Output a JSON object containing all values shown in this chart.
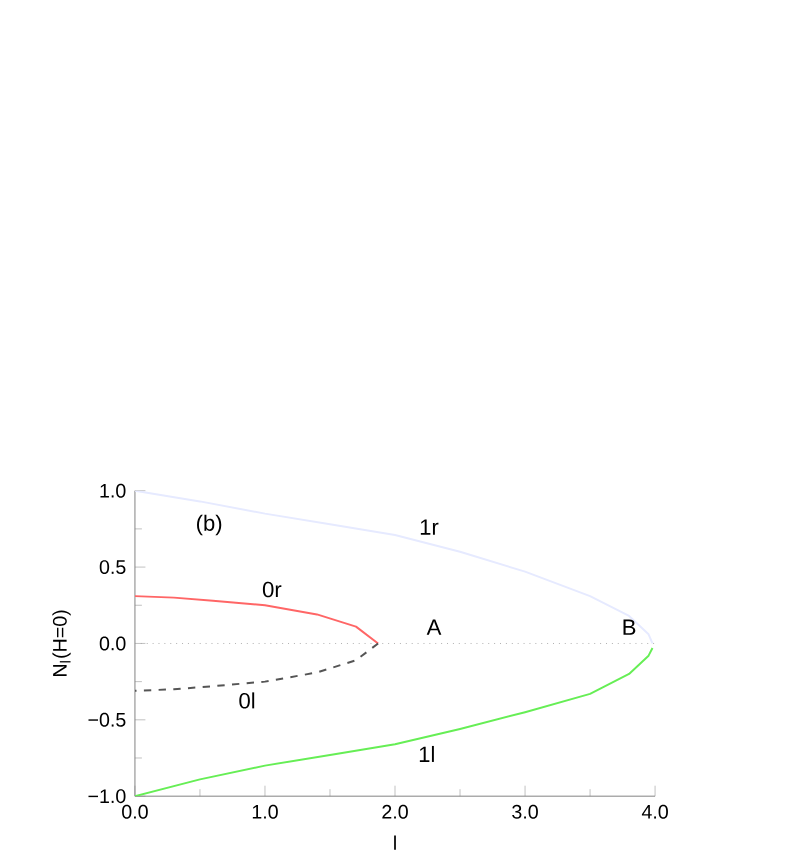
{
  "chart_data": {
    "type": "line",
    "xlabel": "l",
    "ylabel": "N$_{l}$(H=0)",
    "xlim": [
      0,
      4
    ],
    "ylim": [
      -1,
      1
    ],
    "xticks": [
      {
        "value": 0,
        "label": "0.0"
      },
      {
        "value": 1,
        "label": "1.0"
      },
      {
        "value": 2,
        "label": "2.0"
      },
      {
        "value": 3,
        "label": "3.0"
      },
      {
        "value": 4,
        "label": "4.0"
      }
    ],
    "yticks": [
      {
        "value": -1,
        "label": "−1.0"
      },
      {
        "value": -0.5,
        "label": "−0.5"
      },
      {
        "value": 0,
        "label": "0.0"
      },
      {
        "value": 0.5,
        "label": "0.5"
      },
      {
        "value": 1,
        "label": "1.0"
      }
    ],
    "grid": false,
    "marker": "none",
    "series": [
      {
        "name": "0r",
        "color": "#ff6666",
        "line_style": "solid",
        "x": [
          0,
          0.3,
          0.6,
          1.0,
          1.4,
          1.7,
          1.87
        ],
        "values": [
          0.31,
          0.3,
          0.28,
          0.25,
          0.19,
          0.11,
          0
        ]
      },
      {
        "name": "0l",
        "color": "#555555",
        "line_style": "dashed",
        "x": [
          1.87,
          1.7,
          1.4,
          1.0,
          0.6,
          0.3,
          0
        ],
        "values": [
          0,
          -0.11,
          -0.19,
          -0.25,
          -0.28,
          -0.3,
          -0.31
        ]
      },
      {
        "name": "1r",
        "color": "#e6eaff",
        "line_style": "solid",
        "x": [
          0,
          0.5,
          1.0,
          1.5,
          2.0,
          2.5,
          3.0,
          3.5,
          3.8,
          3.95,
          3.98
        ],
        "values": [
          1.0,
          0.93,
          0.85,
          0.78,
          0.71,
          0.6,
          0.47,
          0.31,
          0.18,
          0.06,
          0.0
        ]
      },
      {
        "name": "1l",
        "color": "#66ee55",
        "line_style": "solid",
        "x": [
          0,
          0.5,
          1.0,
          1.5,
          2.0,
          2.5,
          3.0,
          3.5,
          3.8,
          3.95,
          3.98
        ],
        "values": [
          -1.0,
          -0.89,
          -0.8,
          -0.73,
          -0.66,
          -0.56,
          -0.45,
          -0.33,
          -0.2,
          -0.08,
          -0.03
        ]
      }
    ],
    "ref_lines": [
      {
        "axis": "y",
        "value": 0,
        "color": "#aaaaaa",
        "line_style": "dotted"
      }
    ],
    "annotations": [
      "(b)",
      {
        "text": "A",
        "x": 2.3,
        "y": 0
      },
      {
        "text": "B",
        "x": 3.8,
        "y": 0
      }
    ]
  }
}
